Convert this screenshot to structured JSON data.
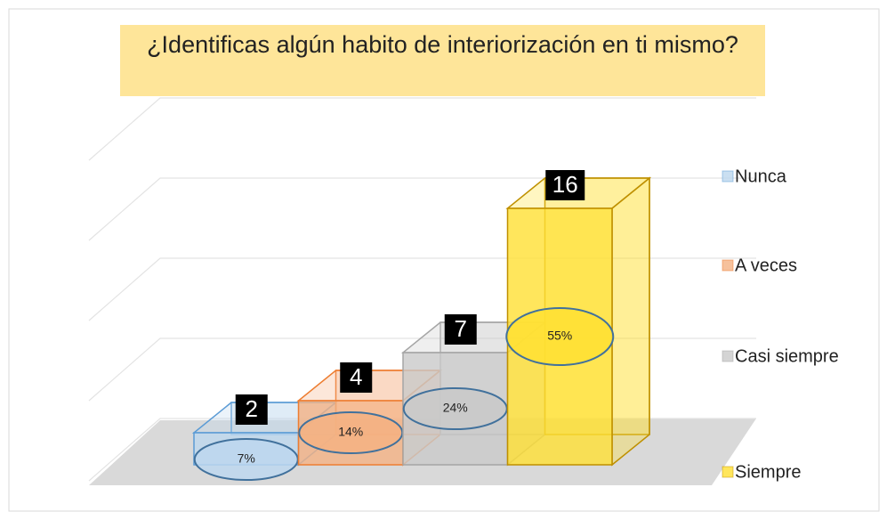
{
  "chart_data": {
    "type": "bar3d",
    "title": "¿Identificas algún habito de interiorización en ti mismo?",
    "categories": [
      "Nunca",
      "A veces",
      "Casi siempre",
      "Siempre"
    ],
    "values": [
      2,
      4,
      7,
      16
    ],
    "percent_labels": [
      "7%",
      "14%",
      "24%",
      "55%"
    ],
    "colors": [
      "#bdd7ee",
      "#f4b183",
      "#c9c9c9",
      "#ffe033"
    ],
    "edge_colors": [
      "#5b9bd5",
      "#ed7d31",
      "#a5a5a5",
      "#bf9000"
    ],
    "ylim": [
      0,
      20
    ],
    "yticks": [
      0,
      5,
      10,
      15,
      20
    ],
    "grid": true,
    "legend": "right"
  }
}
